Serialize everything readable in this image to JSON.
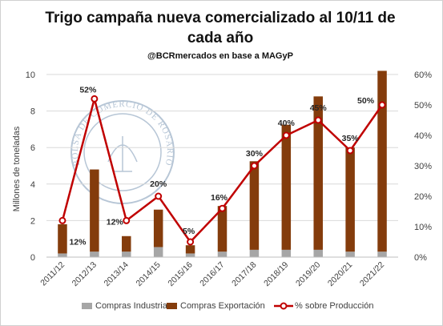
{
  "chart_data": {
    "type": "bar",
    "title": "Trigo campaña nueva comercializado al 10/11 de cada año",
    "subtitle": "@BCRmercados en base a MAGyP",
    "ylabel": "Millones de toneladas",
    "ylim": [
      0,
      10
    ],
    "y2lim": [
      0,
      60
    ],
    "yticks": [
      "0",
      "2",
      "4",
      "6",
      "8",
      "10"
    ],
    "y2ticks": [
      "0%",
      "10%",
      "20%",
      "30%",
      "40%",
      "50%",
      "60%"
    ],
    "categories": [
      "2011/12",
      "2012/13",
      "2013/14",
      "2014/15",
      "2015/16",
      "2016/17",
      "2017/18",
      "2018/19",
      "2019/20",
      "2020/21",
      "2021/22"
    ],
    "series": [
      {
        "name": "Compras Industria",
        "type": "bar",
        "stacked": true,
        "color": "#a6a6a6",
        "values": [
          0.2,
          0.3,
          0.3,
          0.55,
          0.2,
          0.3,
          0.4,
          0.4,
          0.4,
          0.3,
          0.3
        ]
      },
      {
        "name": "Compras Exportación",
        "type": "bar",
        "stacked": true,
        "color": "#843c0c",
        "values": [
          1.6,
          4.5,
          0.85,
          2.05,
          0.45,
          2.5,
          4.85,
          6.85,
          8.4,
          5.7,
          9.9
        ]
      },
      {
        "name": "% sobre Producción",
        "type": "line",
        "axis": "right",
        "color": "#c00000",
        "values": [
          12,
          52,
          12,
          20,
          5,
          16,
          30,
          40,
          45,
          35,
          50
        ],
        "labels": [
          "12%",
          "52%",
          "12%",
          "20%",
          "5%",
          "16%",
          "30%",
          "40%",
          "45%",
          "35%",
          "50%"
        ]
      }
    ],
    "legend_position": "bottom",
    "grid": true
  },
  "watermark": {
    "text_outer": "BOLSA DE COMERCIO DE ROSARIO",
    "color": "#b7c6d6"
  }
}
